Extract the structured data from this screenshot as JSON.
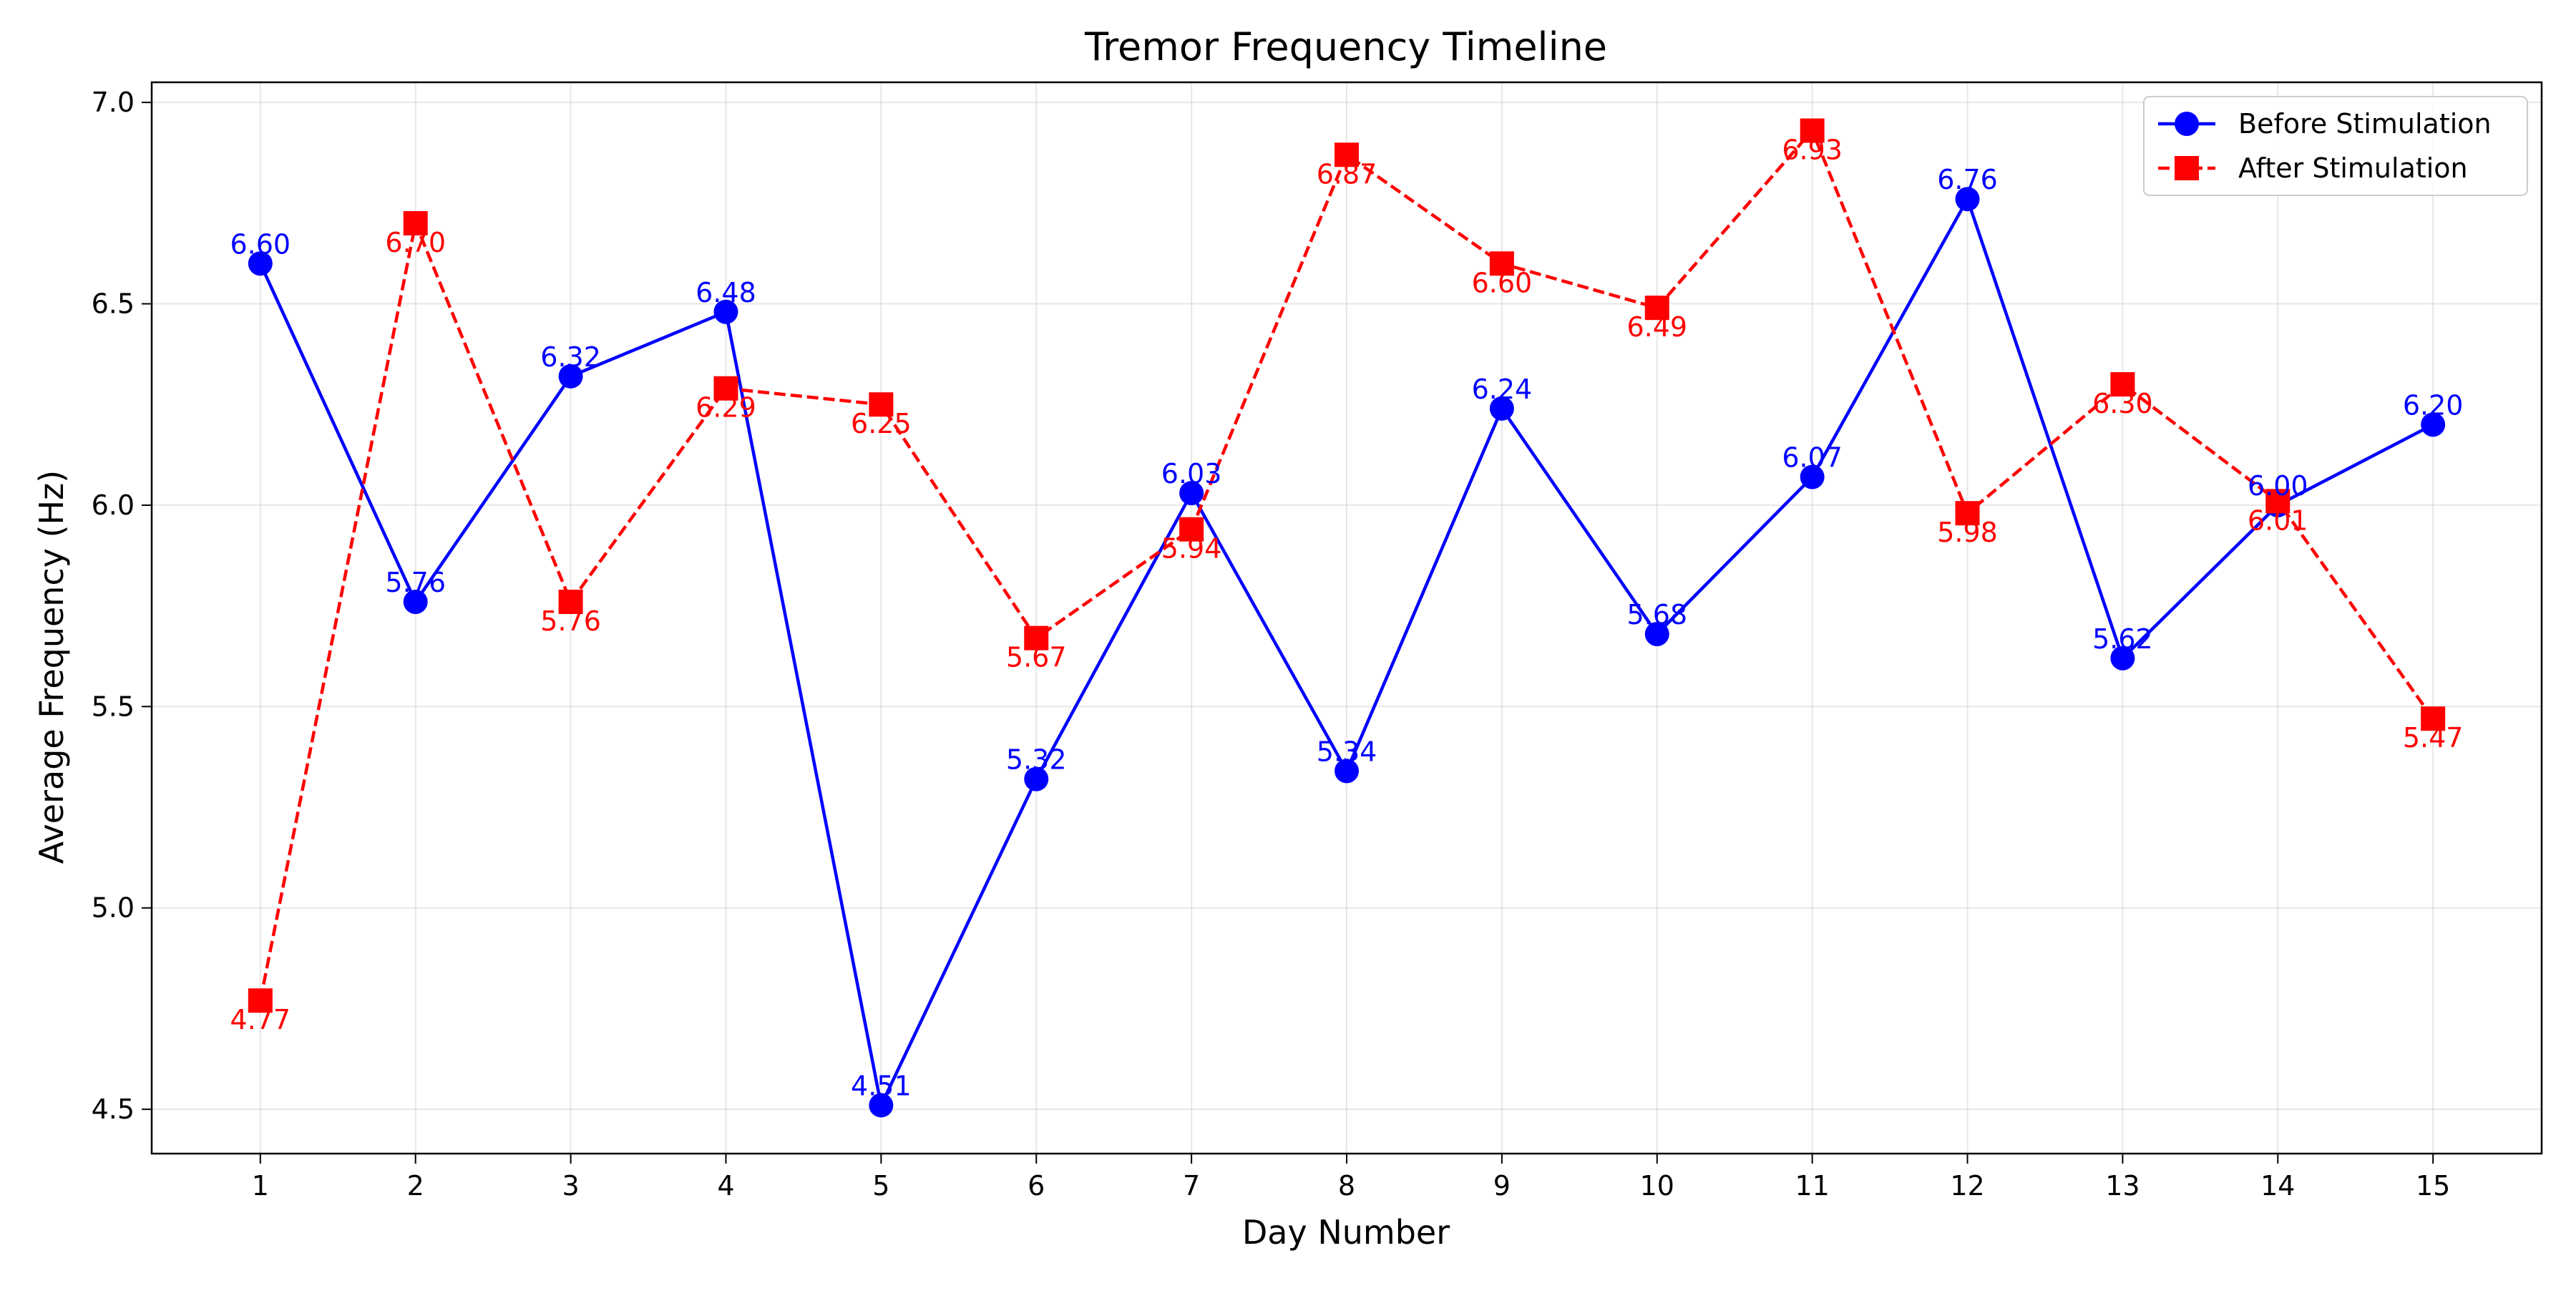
{
  "chart_data": {
    "type": "line",
    "title": "Tremor Frequency Timeline",
    "xlabel": "Day Number",
    "ylabel": "Average Frequency (Hz)",
    "x": [
      1,
      2,
      3,
      4,
      5,
      6,
      7,
      8,
      9,
      10,
      11,
      12,
      13,
      14,
      15
    ],
    "xlim": [
      0.3,
      15.7
    ],
    "ylim": [
      4.39,
      7.05
    ],
    "xticks": [
      1,
      2,
      3,
      4,
      5,
      6,
      7,
      8,
      9,
      10,
      11,
      12,
      13,
      14,
      15
    ],
    "yticks": [
      4.5,
      5.0,
      5.5,
      6.0,
      6.5,
      7.0
    ],
    "ytick_labels": [
      "4.5",
      "5.0",
      "5.5",
      "6.0",
      "6.5",
      "7.0"
    ],
    "grid": true,
    "legend_position": "top-right",
    "series": [
      {
        "name": "Before Stimulation",
        "color": "#0000ff",
        "line_style": "solid",
        "marker": "circle",
        "label_position": "above",
        "values": [
          6.6,
          5.76,
          6.32,
          6.48,
          4.51,
          5.32,
          6.03,
          5.34,
          6.24,
          5.68,
          6.07,
          6.76,
          5.62,
          6.0,
          6.2
        ],
        "labels": [
          "6.60",
          "5.76",
          "6.32",
          "6.48",
          "4.51",
          "5.32",
          "6.03",
          "5.34",
          "6.24",
          "5.68",
          "6.07",
          "6.76",
          "5.62",
          "6.00",
          "6.20"
        ]
      },
      {
        "name": "After Stimulation",
        "color": "#ff0000",
        "line_style": "dashed",
        "marker": "square",
        "label_position": "below",
        "values": [
          4.77,
          6.7,
          5.76,
          6.29,
          6.25,
          5.67,
          5.94,
          6.87,
          6.6,
          6.49,
          6.93,
          5.98,
          6.3,
          6.01,
          5.47
        ],
        "labels": [
          "4.77",
          "6.70",
          "5.76",
          "6.29",
          "6.25",
          "5.67",
          "5.94",
          "6.87",
          "6.60",
          "6.49",
          "6.93",
          "5.98",
          "6.30",
          "6.01",
          "5.47"
        ]
      }
    ]
  }
}
